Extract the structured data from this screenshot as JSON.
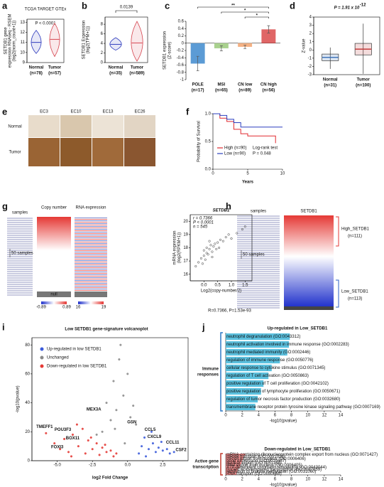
{
  "chart_data": [
    {
      "type": "violin",
      "panel": "a",
      "title": "TCGA TARGET GTEx",
      "y_label": [
        "SETDB1 gene",
        "expression RNAseq - RSEM",
        "(log2(norm_count+1))"
      ],
      "annotation": "P < 0.0001",
      "categories": [
        "Normal",
        "Tumor"
      ],
      "n_labels": [
        "(n=78)",
        "(n=57)"
      ],
      "colors": [
        "#2e3bbd",
        "#d6454f"
      ],
      "min": [
        9.9,
        9.6
      ],
      "median": [
        11.0,
        11.3
      ],
      "max": [
        12.2,
        12.9
      ],
      "ylim": [
        9,
        13.3
      ],
      "yticks": [
        9,
        10,
        11,
        12,
        13
      ]
    },
    {
      "type": "violin",
      "panel": "b",
      "y_label": [
        "SETDB1 Expression",
        "(log2(TPM+1))"
      ],
      "annotation": "0.0139",
      "categories": [
        "Normal",
        "Tumor"
      ],
      "n_labels": [
        "(n=35)",
        "(n=589)"
      ],
      "colors": [
        "#2e3bbd",
        "#d6454f"
      ],
      "min": [
        2.6,
        0.3
      ],
      "median": [
        3.8,
        4.1
      ],
      "max": [
        5.2,
        8.6
      ],
      "ylim": [
        0,
        9.5
      ],
      "yticks": [
        0,
        2,
        4,
        6,
        8
      ]
    },
    {
      "type": "bar",
      "panel": "c",
      "y_label": [
        "SETDB1 expression",
        "(Z-score)"
      ],
      "categories": [
        "POLE",
        "MSI",
        "CN low",
        "CN high"
      ],
      "n_labels": [
        "(n=17)",
        "(n=65)",
        "(n=89)",
        "(n=56)"
      ],
      "values": [
        -0.56,
        -0.14,
        -0.1,
        0.38
      ],
      "errors": [
        0.2,
        0.07,
        0.05,
        0.1
      ],
      "colors": [
        "#5b9bd5",
        "#a9d18e",
        "#f4b183",
        "#e06666"
      ],
      "significance": [
        "**",
        "*",
        "*"
      ],
      "ylim": [
        -1,
        0.6
      ],
      "yticks": [
        -1,
        -0.8,
        -0.6,
        -0.4,
        -0.2,
        0,
        0.2,
        0.4,
        0.6
      ]
    },
    {
      "type": "box",
      "panel": "d",
      "title": "P = 1.91 x 10",
      "title_exponent": "-12",
      "y_label": "Z-value",
      "categories": [
        "Normal",
        "Tumor"
      ],
      "n_labels": [
        "(n=31)",
        "(n=100)"
      ],
      "colors": [
        "#3a6fb7",
        "#c23b3b"
      ],
      "whisker_low": [
        -2.3,
        -2.9
      ],
      "q1": [
        -1.3,
        -0.6
      ],
      "median": [
        -0.9,
        0.1
      ],
      "q3": [
        -0.5,
        0.8
      ],
      "whisker_high": [
        0.3,
        3.2
      ],
      "ylim": [
        -3,
        4
      ],
      "yticks": [
        -3,
        -2,
        -1,
        0,
        1,
        2,
        3,
        4
      ]
    },
    {
      "type": "line",
      "panel": "f",
      "y_label": "Probability of Survival",
      "x_label": "Years",
      "x": [
        0,
        1,
        2,
        3,
        4,
        5,
        6,
        7,
        8,
        9,
        10
      ],
      "series": [
        {
          "name": "High (n=90)",
          "color": "#e0282e",
          "values": [
            1,
            0.92,
            0.86,
            0.72,
            0.64,
            0.6,
            0.6,
            0.6,
            0.6,
            0.47,
            null
          ]
        },
        {
          "name": "Low (n=90)",
          "color": "#2b3fbf",
          "values": [
            1,
            0.97,
            0.9,
            0.84,
            0.76,
            0.76,
            0.76,
            0.76,
            0.76,
            0.76,
            0.76
          ]
        }
      ],
      "annotation": [
        "Log-rank test",
        "P = 0.048"
      ],
      "xlim": [
        0,
        10
      ],
      "xticks": [
        0,
        5,
        10
      ],
      "ylim": [
        0,
        1
      ],
      "yticks": [
        {
          "value": 0,
          "label": "0.0"
        },
        {
          "value": 0.5,
          "label": "0.5"
        },
        {
          "value": 1,
          "label": "1.0"
        }
      ]
    },
    {
      "type": "scatter",
      "title": "SETDB1",
      "stats": [
        "r = 0.7366",
        "P < 0.0001",
        "n = 545"
      ],
      "y_label": [
        "mRNA expression",
        "(log2(RPKM+1))"
      ],
      "x_label": "Log2(copy-number/2)",
      "caption": "R=0.7366, P=1.53e-93",
      "color": "#333333",
      "x": [
        -0.3,
        -0.2,
        -0.1,
        0,
        0,
        0.05,
        0.1,
        0.1,
        0.15,
        0.2,
        0.25,
        0.3,
        0.35,
        0.4,
        0.5,
        0.55,
        0.6,
        0.7,
        0.8,
        0.9,
        1.0,
        1.2,
        1.4,
        1.5,
        -0.05,
        0.2,
        0.3,
        0.45
      ],
      "values": [
        16.6,
        16.9,
        17.2,
        17.4,
        17.8,
        17.1,
        17.6,
        18.0,
        17.5,
        17.9,
        18.2,
        17.7,
        18.1,
        18.3,
        18.4,
        18.0,
        18.6,
        18.5,
        18.8,
        19.0,
        18.7,
        19.1,
        19.4,
        19.6,
        16.8,
        18.5,
        17.3,
        17.9
      ],
      "xlim": [
        -0.5,
        1.75
      ],
      "xticks": [
        {
          "value": 0,
          "label": "0.0"
        },
        {
          "value": 0.5,
          "label": "0.5"
        },
        {
          "value": 1,
          "label": "1.0"
        },
        {
          "value": 1.5,
          "label": "1.5"
        }
      ],
      "ylim": [
        15.5,
        20.5
      ],
      "yticks": [
        16,
        17,
        18,
        19,
        20
      ]
    },
    {
      "type": "scatter",
      "panel": "i",
      "title": "Low SETDB1 gene-signature volcanoplot",
      "x_label": "log2 Fold Change",
      "y_label": "-log10(pvalue)",
      "series": [
        {
          "name": "Up-regulated in low SETDB1",
          "color": "#3b5bdb",
          "x": [
            0.8,
            1,
            1.2,
            1.5,
            1.8,
            2,
            2.2,
            2.5,
            2.8,
            3,
            3.3,
            1.3,
            1.7,
            2.4
          ],
          "values": [
            5,
            10,
            16,
            8,
            12,
            6,
            9,
            7,
            8,
            5,
            6,
            3,
            20,
            13
          ]
        },
        {
          "name": "Unchanged",
          "color": "#8a8a8a",
          "x": [
            -1.5,
            -1.2,
            -1,
            -0.8,
            -0.5,
            -0.3,
            0,
            0.2,
            0.4,
            0.6,
            -0.6,
            -1.8,
            -2.2,
            -0.9,
            -0.2
          ],
          "values": [
            40,
            28,
            55,
            35,
            80,
            45,
            60,
            30,
            38,
            25,
            70,
            20,
            18,
            22,
            12
          ]
        },
        {
          "name": "Down-regulated in low SETDB1",
          "color": "#e53935",
          "x": [
            -5.8,
            -5.2,
            -4.8,
            -4.5,
            -4.2,
            -3.9,
            -3.5,
            -3.2,
            -3,
            -2.8,
            -2.5,
            -2.2,
            -2,
            -1.8,
            -1.5,
            -1.2,
            -1,
            -0.8,
            -3.6,
            -4.0,
            -2.6,
            -1.6
          ],
          "values": [
            19,
            12,
            8,
            15,
            6,
            18,
            10,
            22,
            5,
            14,
            8,
            12,
            4,
            9,
            6,
            7,
            3,
            5,
            25,
            3,
            16,
            11
          ]
        }
      ],
      "annotations": [
        {
          "label": "TMEFF1",
          "x": -5.9,
          "y": 21
        },
        {
          "label": "POU3F3",
          "x": -4.6,
          "y": 19
        },
        {
          "label": "BOX11",
          "x": -3.9,
          "y": 13
        },
        {
          "label": "FOXI3",
          "x": -5.0,
          "y": 7
        },
        {
          "label": "MEX3A",
          "x": -2.4,
          "y": 33
        },
        {
          "label": "GSN",
          "x": 0.3,
          "y": 24
        },
        {
          "label": "CCL5",
          "x": 1.6,
          "y": 19
        },
        {
          "label": "CXCL9",
          "x": 1.9,
          "y": 14
        },
        {
          "label": "CCL11",
          "x": 3.2,
          "y": 10
        },
        {
          "label": "CSF2",
          "x": 3.8,
          "y": 5
        }
      ],
      "xlim": [
        -6.8,
        4.3
      ],
      "xticks": [
        {
          "value": -5,
          "label": "-5.0"
        },
        {
          "value": -2.5,
          "label": "-2.5"
        },
        {
          "value": 0,
          "label": "0.0"
        },
        {
          "value": 2.5,
          "label": "2.5"
        }
      ],
      "ylim": [
        0,
        85
      ],
      "yticks": [
        0,
        20,
        40,
        60,
        80
      ]
    },
    {
      "type": "hbar",
      "panel": "j",
      "title": "Up-regulated in Low_SETDB1",
      "group_label": [
        "Immune",
        "responses"
      ],
      "x_label": "-log10(pvalue)",
      "color": "#5bc0de",
      "accent": "#2b78c5",
      "categories": [
        "neutrophil degranulation (GO:0043312)",
        "neutrophil activation involved in immune response (GO:0002283)",
        "neutrophil mediated immunity (GO:0002446)",
        "regulation of immune response (GO:0050776)",
        "cellular response to cytokine stimulus (GO:0071345)",
        "regulation of T cell activation (GO:0050863)",
        "positive regulation of T cell proliferation (GO:0042102)",
        "positive regulation of lymphocyte proliferation (GO:0050671)",
        "regulation of tumor necrosis factor production (GO:0032680)",
        "transmembrane receptor protein tyrosine kinase signaling pathway (GO:0007169)"
      ],
      "values": [
        7.8,
        7.7,
        7.5,
        6.6,
        5.6,
        5.2,
        4.6,
        4.3,
        3.9,
        3.6
      ],
      "xlim": [
        0,
        14
      ],
      "xticks": [
        0,
        2,
        4,
        6,
        8,
        10,
        12,
        14
      ]
    },
    {
      "type": "hbar",
      "title": "Down-regulated in Low_SETDB1",
      "group_label": [
        "Active gene",
        "transcription"
      ],
      "x_label": "-log10(pvalue)",
      "color": "#f08080",
      "accent": "#c0392b",
      "categories": [
        "mRNA-containing ribonucleoprotein complex export from nucleus (GO:0071427)",
        "mRNA transport (GO:0051028)",
        "mRNA export from nucleus (GO:0006406)",
        "gene expression (GO:0010467)",
        "nuclear export (GO:0051168)",
        "RNA export from nucleus (GO:0006405)",
        "ATP-dependent chromatin remodeling (GO:0043044)",
        "nucleic acid-templated transcription (GO:0097659)",
        "regulation of histone methylation (GO:0031060)",
        "RNA transport (GO:0050658)"
      ],
      "values": [
        2.4,
        2.2,
        2.1,
        2.0,
        1.9,
        1.8,
        1.7,
        1.5,
        1.4,
        1.3
      ],
      "xlim": [
        0,
        14
      ],
      "xticks": [
        0,
        2,
        4,
        6,
        8,
        10,
        12,
        14
      ]
    }
  ],
  "panel_e": {
    "letter": "e",
    "columns": [
      "EC3",
      "EC10",
      "EC13",
      "EC26"
    ],
    "rows": [
      "Normal",
      "Tumor"
    ]
  },
  "panel_g_heatmap": {
    "letter": "g",
    "samples": "samples",
    "copy_number": "Copy number",
    "rna_expression": "RNA expression",
    "sample_scale": "50 samples",
    "null": "null",
    "scale_copy": [
      "-0.89",
      "0.89"
    ],
    "scale_rna": [
      "16",
      "19"
    ]
  },
  "panel_h": {
    "letter": "h",
    "samples": "samples",
    "gene": "SETDB1",
    "sample_scale": "50 samples",
    "high": "High_SETDB1",
    "high_n": "(n=111)",
    "low": "Low_SETDB1",
    "low_n": "(n=113)"
  }
}
